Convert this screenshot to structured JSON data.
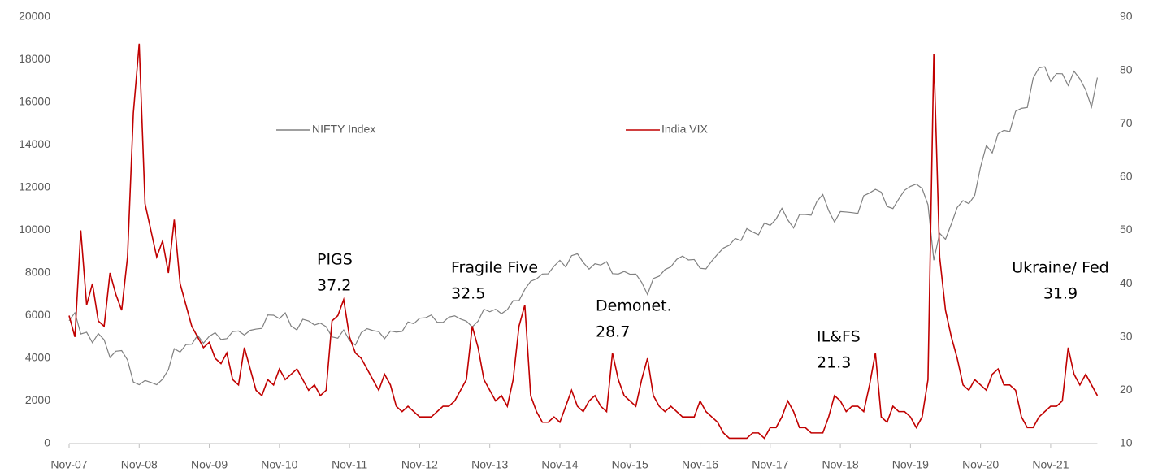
{
  "chart_data": {
    "type": "line",
    "categories": [
      "Nov-07",
      null,
      null,
      null,
      null,
      null,
      null,
      null,
      null,
      null,
      null,
      null,
      "Nov-08",
      null,
      null,
      null,
      null,
      null,
      null,
      null,
      null,
      null,
      null,
      null,
      "Nov-09",
      null,
      null,
      null,
      null,
      null,
      null,
      null,
      null,
      null,
      null,
      null,
      "Nov-10",
      null,
      null,
      null,
      null,
      null,
      null,
      null,
      null,
      null,
      null,
      null,
      "Nov-11",
      null,
      null,
      null,
      null,
      null,
      null,
      null,
      null,
      null,
      null,
      null,
      "Nov-12",
      null,
      null,
      null,
      null,
      null,
      null,
      null,
      null,
      null,
      null,
      null,
      "Nov-13",
      null,
      null,
      null,
      null,
      null,
      null,
      null,
      null,
      null,
      null,
      null,
      "Nov-14",
      null,
      null,
      null,
      null,
      null,
      null,
      null,
      null,
      null,
      null,
      null,
      "Nov-15",
      null,
      null,
      null,
      null,
      null,
      null,
      null,
      null,
      null,
      null,
      null,
      "Nov-16",
      null,
      null,
      null,
      null,
      null,
      null,
      null,
      null,
      null,
      null,
      null,
      "Nov-17",
      null,
      null,
      null,
      null,
      null,
      null,
      null,
      null,
      null,
      null,
      null,
      "Nov-18",
      null,
      null,
      null,
      null,
      null,
      null,
      null,
      null,
      null,
      null,
      null,
      "Nov-19",
      null,
      null,
      null,
      null,
      null,
      null,
      null,
      null,
      null,
      null,
      null,
      "Nov-20",
      null,
      null,
      null,
      null,
      null,
      null,
      null,
      null,
      null,
      null,
      null,
      "Nov-21",
      null,
      null,
      null,
      null,
      null,
      null,
      null,
      null
    ],
    "series": [
      {
        "name": "NIFTY Index",
        "color": "#808080",
        "axis": "y",
        "values": [
          5760,
          6140,
          5140,
          5220,
          4730,
          5160,
          4870,
          4040,
          4330,
          4360,
          3920,
          2890,
          2760,
          2960,
          2870,
          2760,
          3020,
          3470,
          4450,
          4290,
          4640,
          4660,
          5080,
          4710,
          5030,
          5200,
          4880,
          4920,
          5250,
          5280,
          5090,
          5310,
          5370,
          5400,
          6030,
          6020,
          5860,
          6130,
          5510,
          5330,
          5830,
          5750,
          5560,
          5650,
          5480,
          5000,
          4940,
          5330,
          4830,
          4620,
          5200,
          5390,
          5300,
          5250,
          4920,
          5280,
          5230,
          5260,
          5700,
          5620,
          5880,
          5900,
          6030,
          5690,
          5680,
          5930,
          5990,
          5840,
          5740,
          5470,
          5740,
          6300,
          6180,
          6300,
          6090,
          6280,
          6700,
          6700,
          7230,
          7610,
          7720,
          7950,
          7960,
          8320,
          8590,
          8280,
          8810,
          8900,
          8490,
          8180,
          8430,
          8370,
          8530,
          7970,
          7950,
          8070,
          7940,
          7950,
          7560,
          6990,
          7740,
          7850,
          8160,
          8290,
          8640,
          8790,
          8610,
          8630,
          8220,
          8190,
          8560,
          8880,
          9170,
          9300,
          9620,
          9520,
          10080,
          9920,
          9790,
          10340,
          10230,
          10530,
          11030,
          10490,
          10110,
          10740,
          10740,
          10710,
          11360,
          11680,
          10930,
          10390,
          10880,
          10860,
          10830,
          10790,
          11620,
          11750,
          11920,
          11790,
          11120,
          11020,
          11470,
          11880,
          12060,
          12170,
          11960,
          11200,
          8600,
          9860,
          9580,
          10300,
          11070,
          11390,
          11250,
          11640,
          12970,
          13980,
          13630,
          14530,
          14690,
          14630,
          15580,
          15720,
          15760,
          17130,
          17620,
          17670,
          16980,
          17350,
          17340,
          16790,
          17460,
          17100,
          16580,
          15780,
          17160
        ]
      },
      {
        "name": "India VIX",
        "color": "#c00000",
        "axis": "y2",
        "values": [
          34,
          30,
          50,
          36,
          40,
          33,
          32,
          42,
          38,
          35,
          45,
          72,
          85,
          55,
          50,
          45,
          48,
          42,
          52,
          40,
          36,
          32,
          30,
          28,
          29,
          26,
          25,
          27,
          22,
          21,
          28,
          24,
          20,
          19,
          22,
          21,
          24,
          22,
          23,
          24,
          22,
          20,
          21,
          19,
          20,
          33,
          34,
          37,
          30,
          27,
          26,
          24,
          22,
          20,
          23,
          21,
          17,
          16,
          17,
          16,
          15,
          15,
          15,
          16,
          17,
          17,
          18,
          20,
          22,
          32,
          28,
          22,
          20,
          18,
          19,
          17,
          22,
          32,
          36,
          19,
          16,
          14,
          14,
          15,
          14,
          17,
          20,
          17,
          16,
          18,
          19,
          17,
          16,
          27,
          22,
          19,
          18,
          17,
          22,
          26,
          19,
          17,
          16,
          17,
          16,
          15,
          15,
          15,
          18,
          16,
          15,
          14,
          12,
          11,
          11,
          11,
          11,
          12,
          12,
          11,
          13,
          13,
          15,
          18,
          16,
          13,
          13,
          12,
          12,
          12,
          15,
          19,
          18,
          16,
          17,
          17,
          16,
          21,
          27,
          15,
          14,
          17,
          16,
          16,
          15,
          13,
          15,
          22,
          83,
          45,
          35,
          30,
          26,
          21,
          20,
          22,
          21,
          20,
          23,
          24,
          21,
          21,
          20,
          15,
          13,
          13,
          15,
          16,
          17,
          17,
          18,
          28,
          23,
          21,
          23,
          21,
          19
        ]
      }
    ],
    "ylim": [
      0,
      20000
    ],
    "yticks": [
      0,
      2000,
      4000,
      6000,
      8000,
      10000,
      12000,
      14000,
      16000,
      18000,
      20000
    ],
    "y2lim": [
      10,
      90
    ],
    "y2ticks": [
      10,
      20,
      30,
      40,
      50,
      60,
      70,
      80,
      90
    ],
    "legend": "top",
    "annotations": [
      [
        "PIGS",
        "37.2"
      ],
      [
        "Fragile Five",
        "32.5"
      ],
      [
        "Demonet.",
        "28.7"
      ],
      [
        "IL&FS",
        "21.3"
      ],
      [
        "Ukraine/ Fed",
        "31.9"
      ]
    ]
  }
}
